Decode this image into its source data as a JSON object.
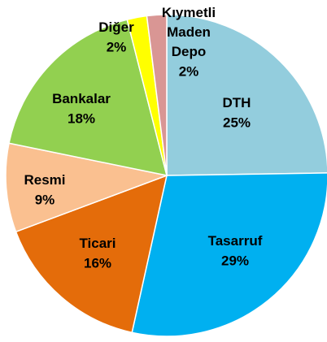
{
  "chart_data": {
    "type": "pie",
    "categories": [
      "DTH",
      "Tasarruf",
      "Ticari",
      "Resmi",
      "Bankalar",
      "Diğer",
      "Kıymetli Maden Depo"
    ],
    "values": [
      25,
      29,
      16,
      9,
      18,
      2,
      2
    ],
    "value_labels": [
      "25%",
      "29%",
      "16%",
      "9%",
      "18%",
      "2%",
      "2%"
    ],
    "colors": [
      "#93CDDD",
      "#00B0F0",
      "#E46C0A",
      "#FAC090",
      "#92D050",
      "#FFFF00",
      "#D99694"
    ]
  }
}
